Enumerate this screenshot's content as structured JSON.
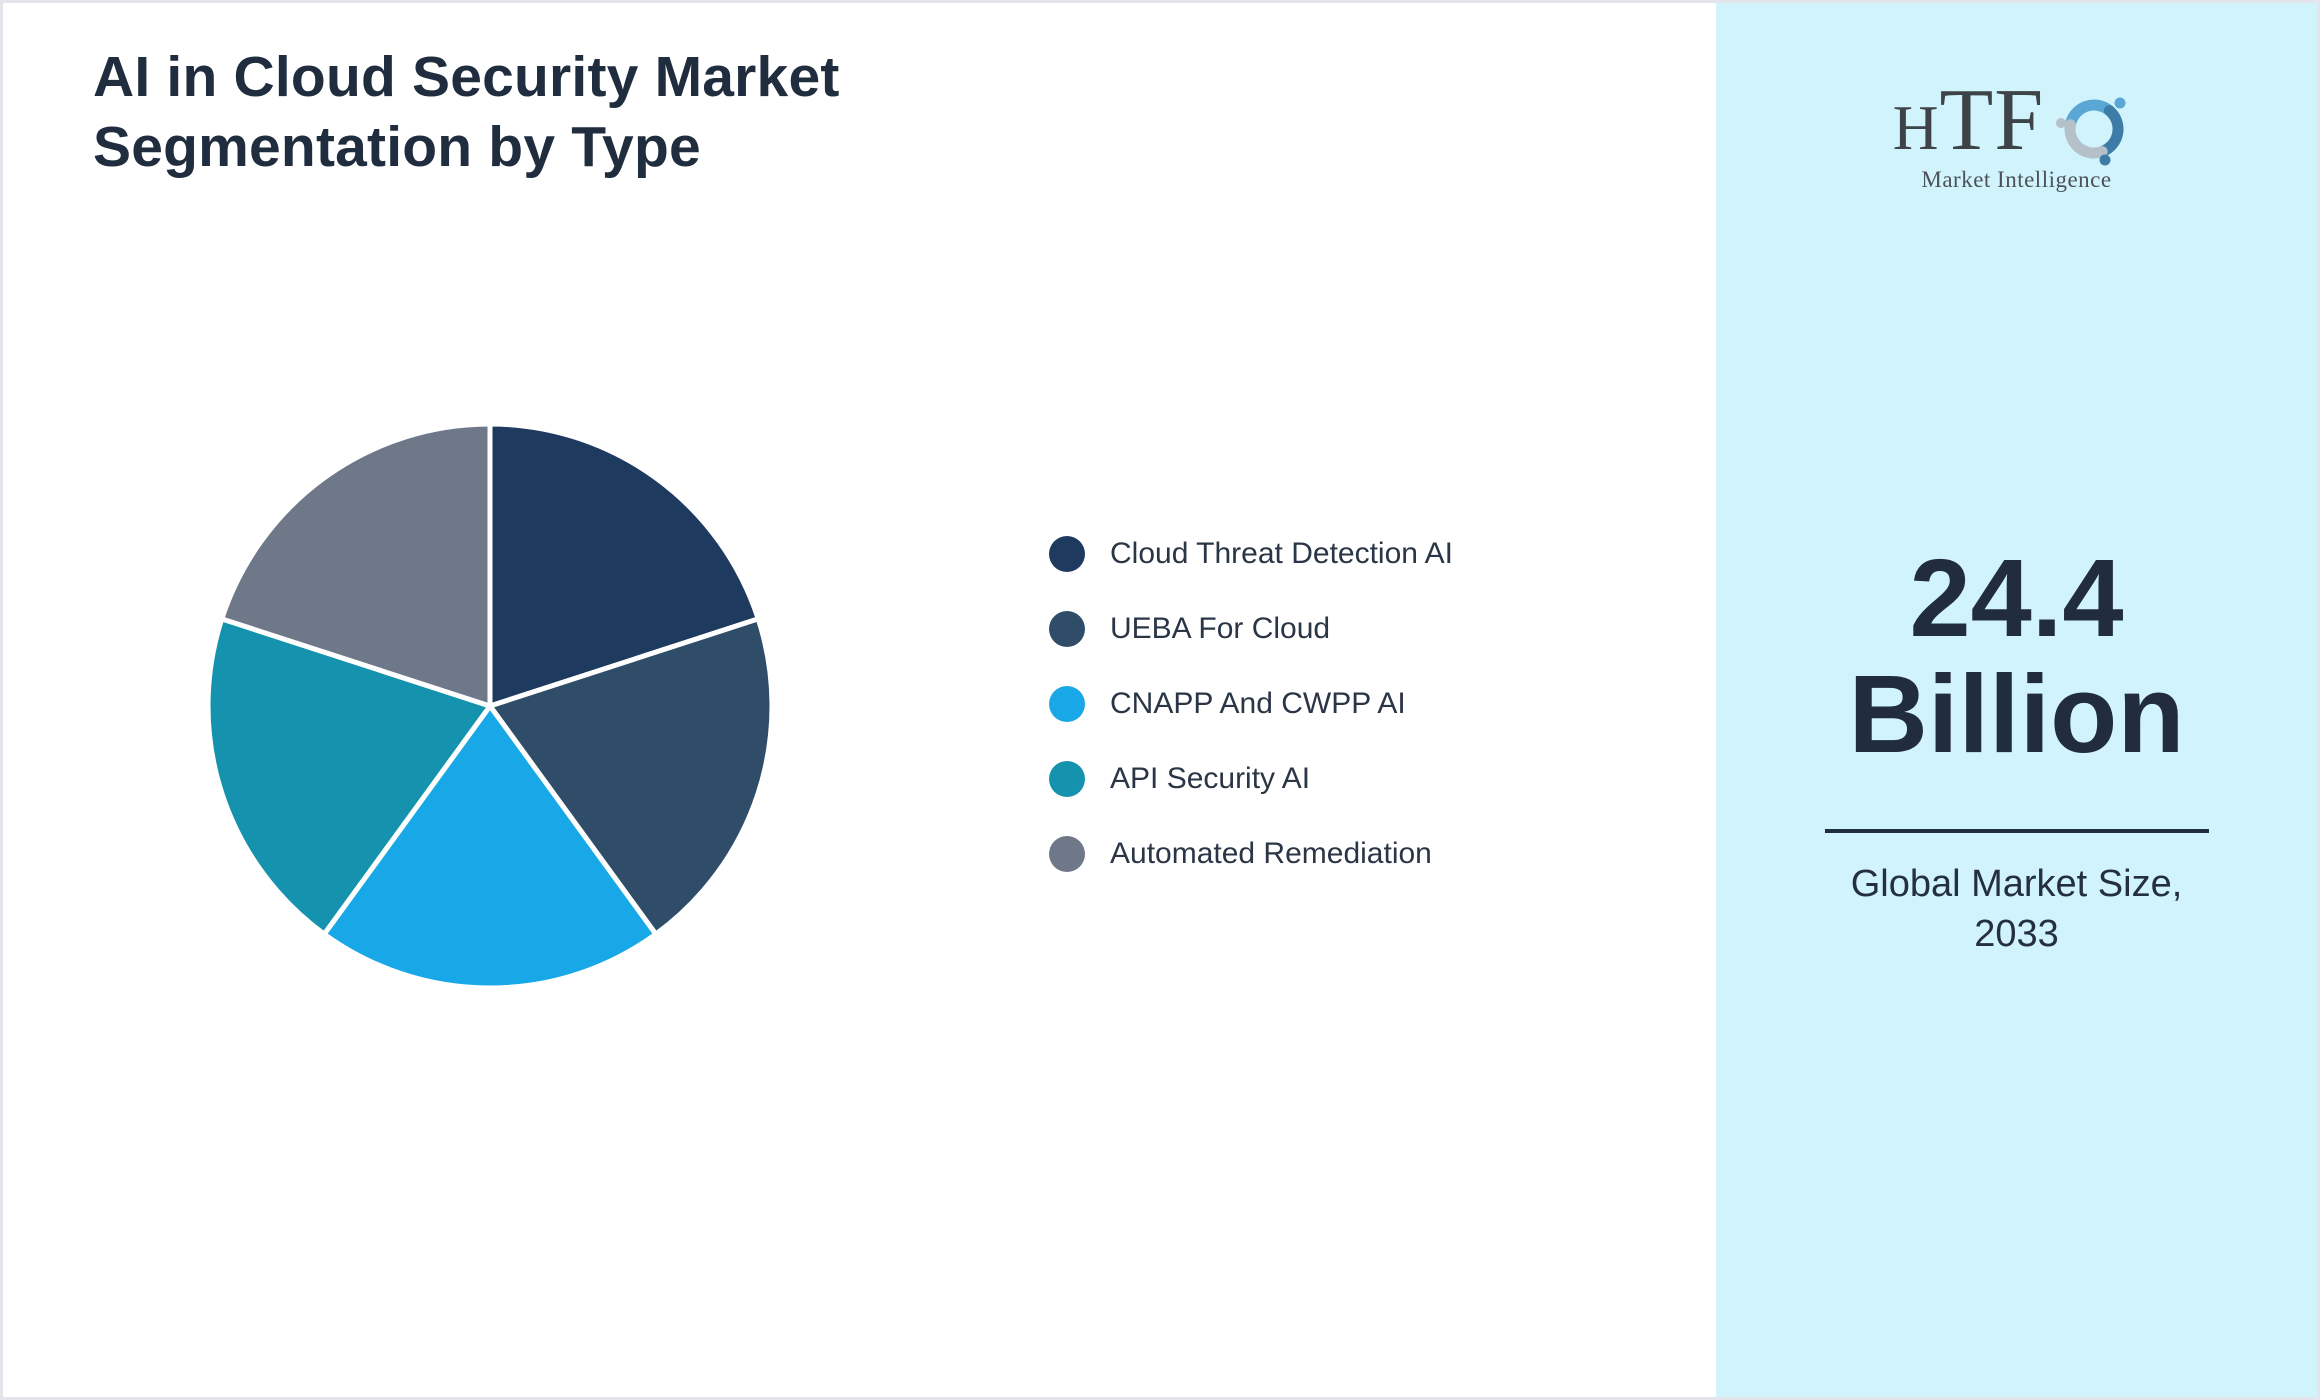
{
  "title": "AI in Cloud Security Market Segmentation by Type",
  "chart_data": {
    "type": "pie",
    "title": "AI in Cloud Security Market Segmentation by Type",
    "categories": [
      "Cloud Threat Detection AI",
      "UEBA For Cloud",
      "CNAPP And CWPP AI",
      "API Security AI",
      "Automated Remediation"
    ],
    "values": [
      20,
      20,
      20,
      20,
      20
    ],
    "unit": "percent-share",
    "colors": [
      "#1e3a5e",
      "#2f4d69",
      "#18a8e8",
      "#1492ae",
      "#6e7889"
    ],
    "start_angle_deg": -90,
    "direction": "clockwise",
    "legend_position": "right",
    "slice_separator_color": "#ffffff"
  },
  "legend": {
    "items": [
      {
        "label": "Cloud Threat Detection AI"
      },
      {
        "label": "UEBA For Cloud"
      },
      {
        "label": "CNAPP And CWPP AI"
      },
      {
        "label": "API Security AI"
      },
      {
        "label": "Automated Remediation"
      }
    ]
  },
  "panel": {
    "bg_color": "#d1f3fc",
    "value_line1": "24.4",
    "value_line2": "Billion",
    "caption": "Global Market Size, 2033"
  },
  "brand": {
    "logo_text": "HTF",
    "logo_subtext": "Market Intelligence",
    "swirl_colors": [
      "#5aa7d6",
      "#3e7ca8",
      "#b6c0c9"
    ]
  }
}
